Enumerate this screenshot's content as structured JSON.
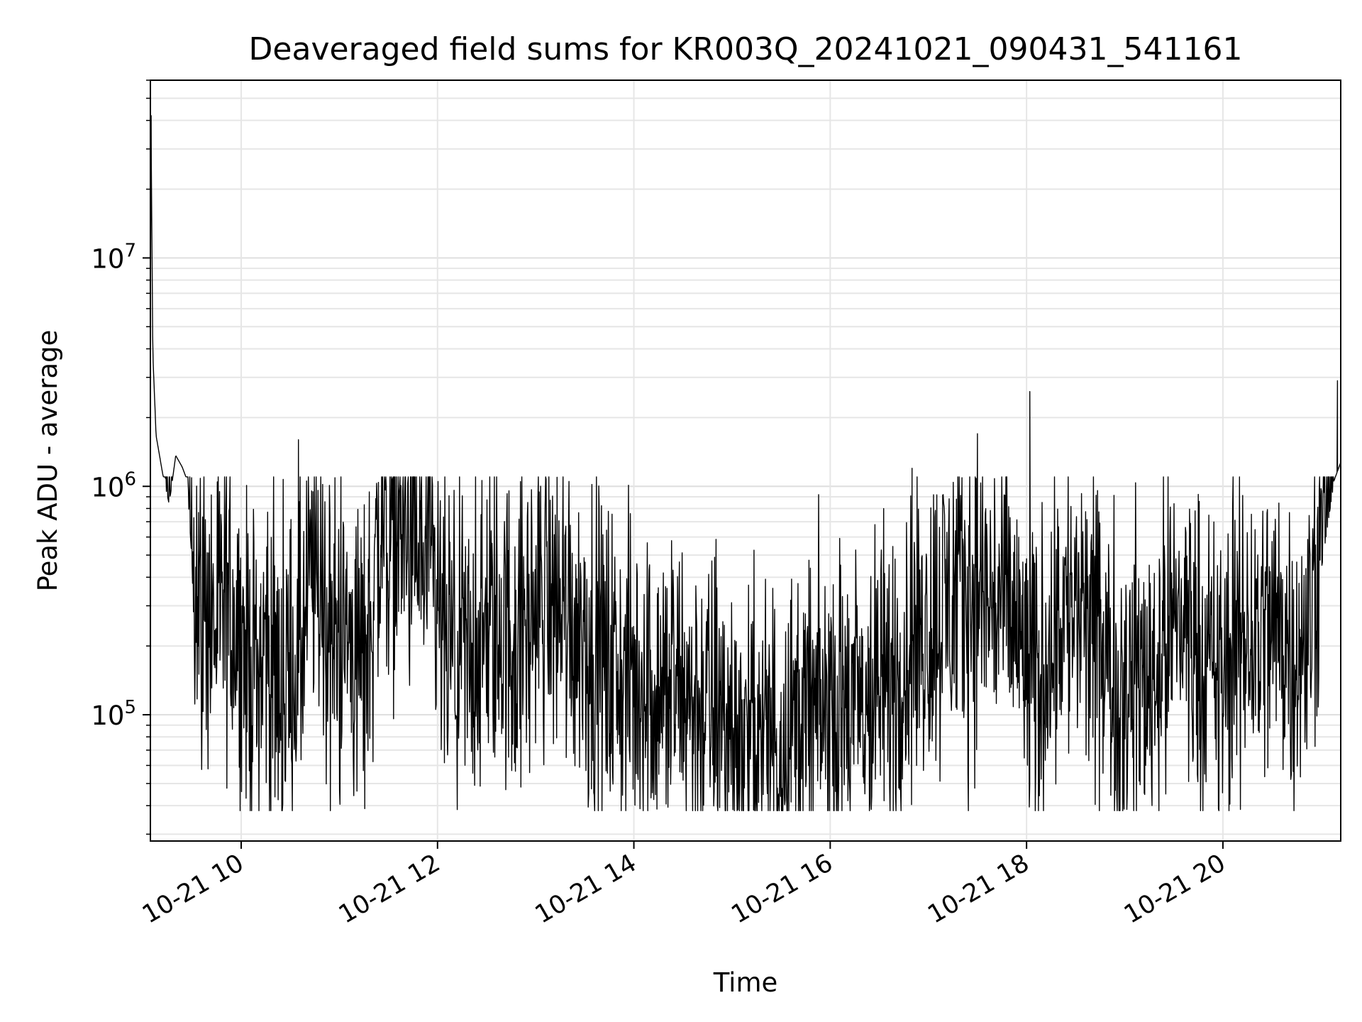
{
  "chart_data": {
    "type": "line",
    "title": "Deaveraged field sums for KR003Q_20241021_090431_541161",
    "xlabel": "Time",
    "ylabel": "Peak ADU - average",
    "x_axis": {
      "kind": "datetime",
      "min": "2024-10-21T09:04:31",
      "max": "2024-10-21T21:12:00",
      "ticks": [
        {
          "value": "2024-10-21T10:00",
          "label": "10-21 10"
        },
        {
          "value": "2024-10-21T12:00",
          "label": "10-21 12"
        },
        {
          "value": "2024-10-21T14:00",
          "label": "10-21 14"
        },
        {
          "value": "2024-10-21T16:00",
          "label": "10-21 16"
        },
        {
          "value": "2024-10-21T18:00",
          "label": "10-21 18"
        },
        {
          "value": "2024-10-21T20:00",
          "label": "10-21 20"
        }
      ]
    },
    "y_axis": {
      "scale": "log",
      "ylim": [
        28000,
        60000000
      ],
      "ticks": [
        {
          "value": 100000,
          "base": "10",
          "exp": "5"
        },
        {
          "value": 1000000,
          "base": "10",
          "exp": "6"
        },
        {
          "value": 10000000,
          "base": "10",
          "exp": "7"
        }
      ]
    },
    "grid": true,
    "legend": "none",
    "series": [
      {
        "color": "#000000",
        "points": [
          [
            "09:04",
            1800000
          ],
          [
            "09:05",
            42000000
          ],
          [
            "09:06",
            5000000
          ],
          [
            "09:08",
            2200000
          ],
          [
            "09:12",
            1500000
          ],
          [
            "09:16",
            1100000
          ],
          [
            "09:20",
            1800000
          ],
          [
            "09:24",
            1600000
          ],
          [
            "09:27",
            1400000
          ],
          [
            "09:30",
            600000
          ],
          [
            "09:35",
            300000
          ],
          [
            "09:45",
            250000
          ],
          [
            "09:55",
            300000
          ],
          [
            "10:05",
            140000
          ],
          [
            "10:15",
            200000
          ],
          [
            "10:25",
            120000
          ],
          [
            "10:35",
            160000
          ],
          [
            "10:45",
            450000
          ],
          [
            "10:55",
            200000
          ],
          [
            "11:05",
            220000
          ],
          [
            "11:15",
            160000
          ],
          [
            "11:25",
            600000
          ],
          [
            "11:35",
            700000
          ],
          [
            "11:45",
            550000
          ],
          [
            "11:55",
            400000
          ],
          [
            "12:05",
            180000
          ],
          [
            "12:20",
            160000
          ],
          [
            "12:35",
            250000
          ],
          [
            "12:50",
            200000
          ],
          [
            "13:05",
            350000
          ],
          [
            "13:20",
            280000
          ],
          [
            "13:35",
            200000
          ],
          [
            "13:50",
            140000
          ],
          [
            "14:10",
            130000
          ],
          [
            "14:30",
            120000
          ],
          [
            "14:50",
            100000
          ],
          [
            "15:10",
            75000
          ],
          [
            "15:30",
            85000
          ],
          [
            "15:50",
            100000
          ],
          [
            "16:10",
            95000
          ],
          [
            "16:30",
            120000
          ],
          [
            "16:50",
            200000
          ],
          [
            "17:10",
            300000
          ],
          [
            "17:30",
            350000
          ],
          [
            "17:50",
            280000
          ],
          [
            "18:05",
            120000
          ],
          [
            "18:20",
            300000
          ],
          [
            "18:35",
            250000
          ],
          [
            "18:55",
            130000
          ],
          [
            "19:15",
            150000
          ],
          [
            "19:35",
            280000
          ],
          [
            "19:55",
            130000
          ],
          [
            "20:15",
            220000
          ],
          [
            "20:35",
            250000
          ],
          [
            "20:50",
            170000
          ],
          [
            "21:00",
            600000
          ],
          [
            "21:08",
            1500000
          ],
          [
            "21:12",
            1800000
          ]
        ],
        "notable_spikes": [
          [
            "09:05",
            42000000
          ],
          [
            "10:35",
            1600000
          ],
          [
            "11:50",
            1000000
          ],
          [
            "16:50",
            1200000
          ],
          [
            "17:30",
            1700000
          ],
          [
            "18:02",
            2600000
          ],
          [
            "21:10",
            2900000
          ]
        ]
      }
    ]
  }
}
